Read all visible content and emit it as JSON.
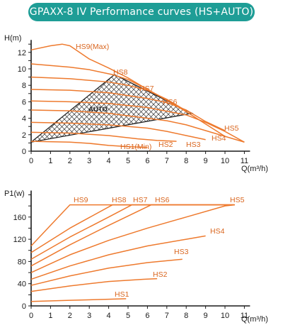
{
  "title": "GPAXX-8 IV Performance curves (HS+AUTO)",
  "colors": {
    "banner": "#1e9d96",
    "curve": "#ee7a2e",
    "label": "#d9651e",
    "axis": "#1a1a1a"
  },
  "chart_data": [
    {
      "type": "line",
      "ylabel": "H(m)",
      "xlabel": "Q(m³/h)",
      "xlim": [
        0,
        11
      ],
      "ylim": [
        0,
        13
      ],
      "xticks": [
        "0",
        "1",
        "2",
        "3",
        "4",
        "5",
        "6",
        "7",
        "8",
        "9",
        "10",
        "11"
      ],
      "yticks": [
        "0",
        "2",
        "4",
        "6",
        "8",
        "10",
        "12"
      ],
      "series": [
        {
          "name": "HS9(Max)",
          "label": "HS9(Max)",
          "points": [
            [
              0,
              12.3
            ],
            [
              1,
              12.8
            ],
            [
              1.6,
              13.0
            ],
            [
              2,
              12.8
            ],
            [
              3,
              11.2
            ],
            [
              4,
              10.1
            ],
            [
              5,
              8.9
            ],
            [
              6,
              7.5
            ],
            [
              7,
              6.2
            ],
            [
              8,
              4.8
            ],
            [
              9,
              3.3
            ],
            [
              10,
              1.8
            ],
            [
              11,
              1.1
            ]
          ]
        },
        {
          "name": "HS8",
          "label": "HS8",
          "points": [
            [
              0,
              10.6
            ],
            [
              2,
              10.2
            ],
            [
              3,
              9.9
            ],
            [
              4.2,
              9.3
            ],
            [
              5,
              8.7
            ],
            [
              6,
              7.5
            ],
            [
              7,
              6.2
            ],
            [
              8,
              4.8
            ]
          ]
        },
        {
          "name": "HS7",
          "label": "HS7",
          "points": [
            [
              0,
              9.0
            ],
            [
              2,
              8.8
            ],
            [
              4,
              8.4
            ],
            [
              5,
              8.0
            ],
            [
              6,
              7.4
            ],
            [
              7,
              6.3
            ],
            [
              8,
              4.9
            ]
          ]
        },
        {
          "name": "HS6",
          "label": "HS6",
          "points": [
            [
              0,
              7.5
            ],
            [
              2,
              7.4
            ],
            [
              4,
              7.1
            ],
            [
              6,
              6.4
            ],
            [
              7,
              5.9
            ],
            [
              8,
              5.0
            ],
            [
              9,
              3.6
            ],
            [
              10,
              2.5
            ]
          ]
        },
        {
          "name": "HS5",
          "label": "HS5",
          "points": [
            [
              0,
              6.1
            ],
            [
              2,
              6.0
            ],
            [
              4,
              5.8
            ],
            [
              6,
              5.3
            ],
            [
              8,
              4.4
            ],
            [
              9,
              3.5
            ],
            [
              10,
              2.4
            ],
            [
              11,
              1.1
            ]
          ]
        },
        {
          "name": "HS4",
          "label": "HS4",
          "points": [
            [
              0,
              5.0
            ],
            [
              2,
              4.9
            ],
            [
              4,
              4.6
            ],
            [
              6,
              4.0
            ],
            [
              7,
              3.7
            ],
            [
              8,
              3.2
            ],
            [
              9,
              2.5
            ],
            [
              10,
              1.8
            ]
          ]
        },
        {
          "name": "HS3",
          "label": "HS3",
          "points": [
            [
              0,
              3.5
            ],
            [
              2,
              3.4
            ],
            [
              4,
              3.2
            ],
            [
              6,
              2.8
            ],
            [
              7,
              2.4
            ],
            [
              8,
              1.9
            ],
            [
              9,
              1.4
            ]
          ]
        },
        {
          "name": "HS2",
          "label": "HS2",
          "points": [
            [
              0,
              2.3
            ],
            [
              2,
              2.2
            ],
            [
              4,
              1.9
            ],
            [
              5.5,
              1.5
            ],
            [
              6.5,
              1.3
            ],
            [
              7.5,
              1.2
            ]
          ]
        },
        {
          "name": "HS1(Min)",
          "label": "HS1(Min)",
          "points": [
            [
              0,
              1.2
            ],
            [
              2,
              1.1
            ],
            [
              3,
              0.95
            ],
            [
              4,
              0.7
            ],
            [
              5,
              0.55
            ],
            [
              6,
              0.45
            ]
          ]
        }
      ],
      "auto_region": {
        "label": "AUTO",
        "outline": [
          [
            0,
            1.1
          ],
          [
            4.3,
            9.3
          ],
          [
            8.3,
            4.6
          ]
        ]
      }
    },
    {
      "type": "line",
      "ylabel": "P1(w)",
      "xlabel": "Q(m³/h)",
      "xlim": [
        0,
        11
      ],
      "ylim": [
        0,
        200
      ],
      "xticks": [
        "0",
        "1",
        "2",
        "3",
        "4",
        "5",
        "6",
        "7",
        "8",
        "9",
        "10",
        "11"
      ],
      "yticks": [
        "0",
        "40",
        "80",
        "120",
        "160"
      ],
      "series": [
        {
          "name": "HS9",
          "label": "HS9",
          "points": [
            [
              0,
              108
            ],
            [
              1,
              145
            ],
            [
              2,
              182
            ],
            [
              10.5,
              182
            ]
          ]
        },
        {
          "name": "HS8",
          "label": "HS8",
          "points": [
            [
              0,
              96
            ],
            [
              2,
              140
            ],
            [
              4.2,
              182
            ],
            [
              10.5,
              182
            ]
          ]
        },
        {
          "name": "HS7",
          "label": "HS7",
          "points": [
            [
              0,
              84
            ],
            [
              2,
              124
            ],
            [
              4,
              160
            ],
            [
              5.2,
              182
            ],
            [
              10.5,
              182
            ]
          ]
        },
        {
          "name": "HS6",
          "label": "HS6",
          "points": [
            [
              0,
              72
            ],
            [
              2,
              110
            ],
            [
              4,
              145
            ],
            [
              6.2,
              182
            ],
            [
              10.5,
              182
            ]
          ]
        },
        {
          "name": "HS5",
          "label": "HS5",
          "points": [
            [
              0,
              60
            ],
            [
              2,
              92
            ],
            [
              4,
              118
            ],
            [
              6,
              140
            ],
            [
              8,
              160
            ],
            [
              10,
              180
            ],
            [
              10.5,
              182
            ]
          ]
        },
        {
          "name": "HS4",
          "label": "HS4",
          "points": [
            [
              0,
              48
            ],
            [
              2,
              72
            ],
            [
              4,
              92
            ],
            [
              6,
              108
            ],
            [
              8,
              120
            ],
            [
              9,
              126
            ]
          ]
        },
        {
          "name": "HS3",
          "label": "HS3",
          "points": [
            [
              0,
              37
            ],
            [
              2,
              54
            ],
            [
              4,
              68
            ],
            [
              6,
              78
            ],
            [
              7.8,
              84
            ]
          ]
        },
        {
          "name": "HS2",
          "label": "HS2",
          "points": [
            [
              0,
              26
            ],
            [
              2,
              36
            ],
            [
              4,
              44
            ],
            [
              5.8,
              48
            ],
            [
              6.5,
              49
            ]
          ]
        },
        {
          "name": "HS1",
          "label": "HS1",
          "points": [
            [
              0,
              8
            ],
            [
              2,
              10
            ],
            [
              4,
              12
            ],
            [
              4.9,
              13
            ]
          ]
        }
      ]
    }
  ]
}
